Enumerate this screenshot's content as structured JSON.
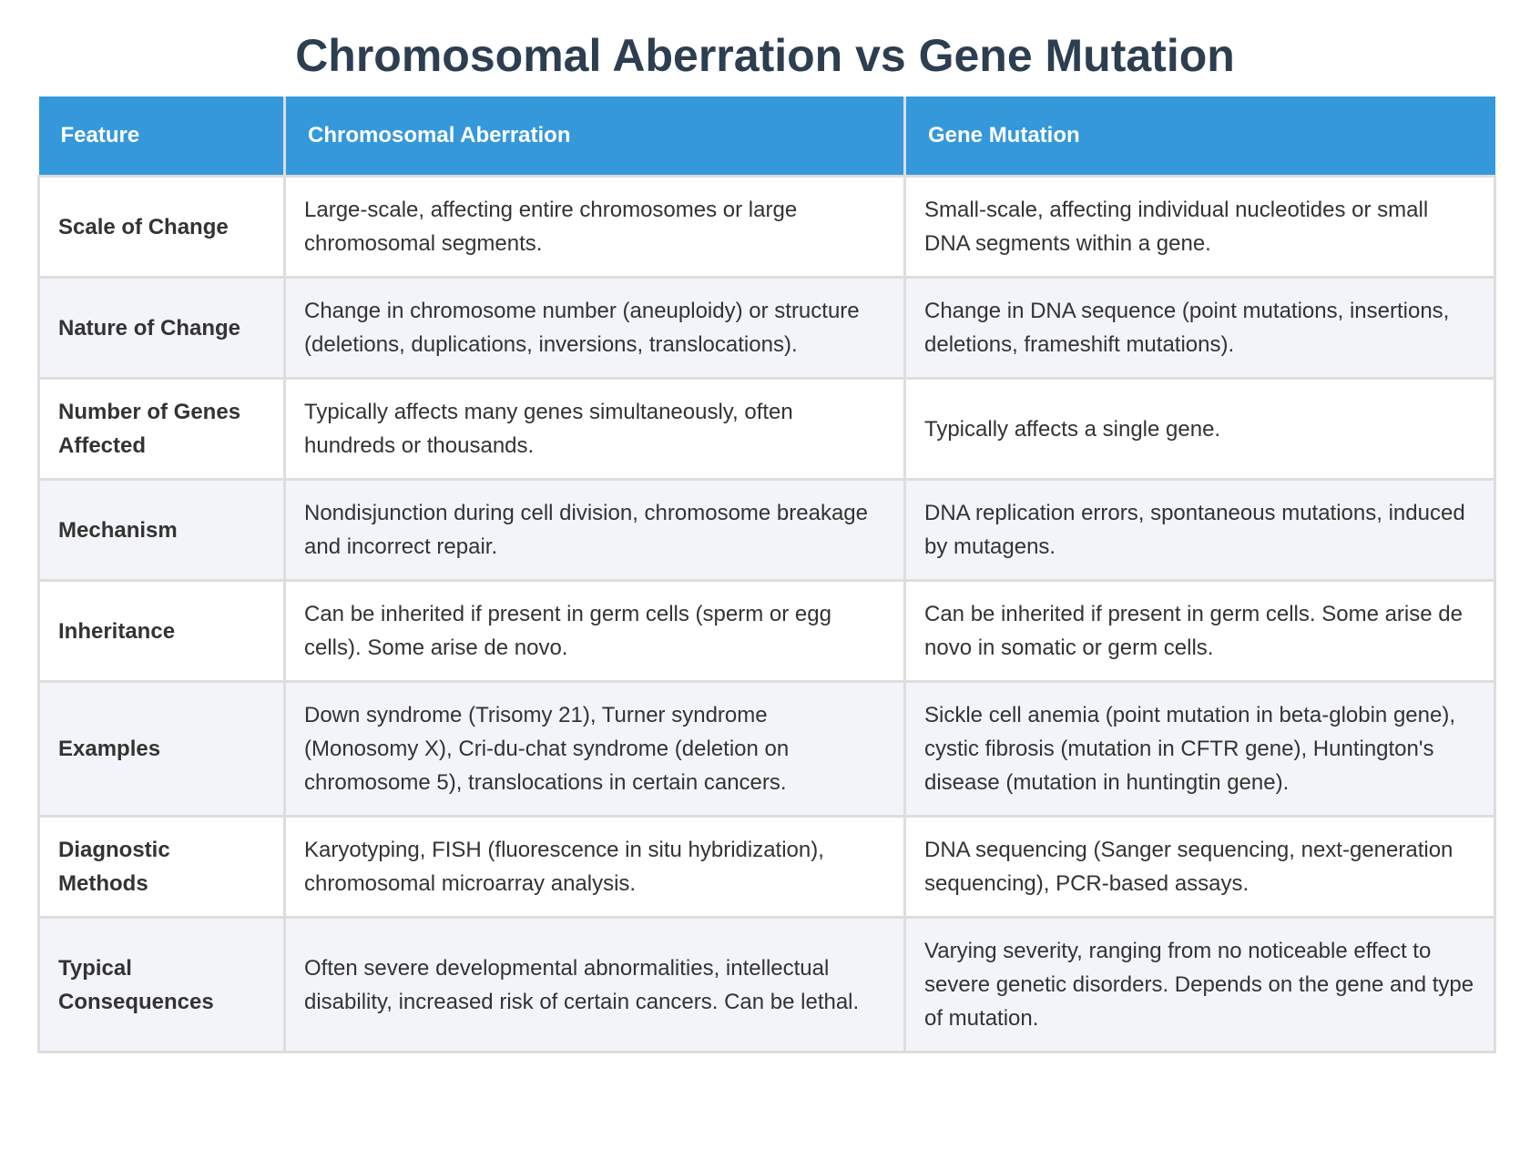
{
  "title": "Chromosomal Aberration vs Gene Mutation",
  "table": {
    "headers": [
      "Feature",
      "Chromosomal Aberration",
      "Gene Mutation"
    ],
    "rows": [
      {
        "feature": "Scale of Change",
        "chromosomal": "Large-scale, affecting entire chromosomes or large chromosomal segments.",
        "gene": "Small-scale, affecting individual nucleotides or small DNA segments within a gene."
      },
      {
        "feature": "Nature of Change",
        "chromosomal": "Change in chromosome number (aneuploidy) or structure (deletions, duplications, inversions, translocations).",
        "gene": "Change in DNA sequence (point mutations, insertions, deletions, frameshift mutations)."
      },
      {
        "feature": "Number of Genes Affected",
        "chromosomal": "Typically affects many genes simultaneously, often hundreds or thousands.",
        "gene": "Typically affects a single gene."
      },
      {
        "feature": "Mechanism",
        "chromosomal": "Nondisjunction during cell division, chromosome breakage and incorrect repair.",
        "gene": "DNA replication errors, spontaneous mutations, induced by mutagens."
      },
      {
        "feature": "Inheritance",
        "chromosomal": "Can be inherited if present in germ cells (sperm or egg cells). Some arise de novo.",
        "gene": "Can be inherited if present in germ cells. Some arise de novo in somatic or germ cells."
      },
      {
        "feature": "Examples",
        "chromosomal": "Down syndrome (Trisomy 21), Turner syndrome (Monosomy X), Cri-du-chat syndrome (deletion on chromosome 5), translocations in certain cancers.",
        "gene": "Sickle cell anemia (point mutation in beta-globin gene), cystic fibrosis (mutation in CFTR gene), Huntington's disease (mutation in huntingtin gene)."
      },
      {
        "feature": "Diagnostic Methods",
        "chromosomal": "Karyotyping, FISH (fluorescence in situ hybridization), chromosomal microarray analysis.",
        "gene": "DNA sequencing (Sanger sequencing, next-generation sequencing), PCR-based assays."
      },
      {
        "feature": "Typical Consequences",
        "chromosomal": "Often severe developmental abnormalities, intellectual disability, increased risk of certain cancers. Can be lethal.",
        "gene": "Varying severity, ranging from no noticeable effect to severe genetic disorders. Depends on the gene and type of mutation."
      }
    ]
  },
  "colors": {
    "title": "#2c3e50",
    "header_bg": "#3498db",
    "header_text": "#ffffff",
    "row_alt_bg": "#f2f4f9",
    "border": "#dddddd"
  }
}
